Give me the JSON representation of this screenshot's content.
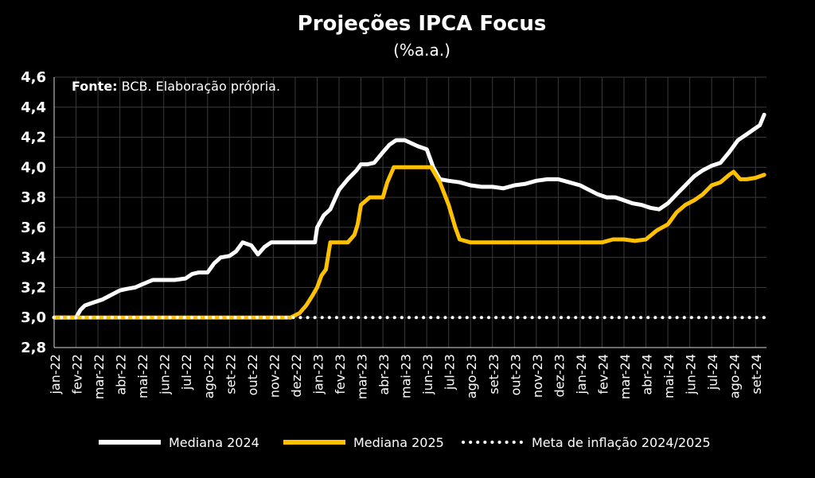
{
  "chart_data": {
    "type": "line",
    "title": "Projeções IPCA Focus",
    "subtitle": "(%a.a.)",
    "source_label": "Fonte:",
    "source_text": " BCB. Elaboração própria.",
    "ylim": [
      2.8,
      4.6
    ],
    "yticks": [
      "2,8",
      "3,0",
      "3,2",
      "3,4",
      "3,6",
      "3,8",
      "4,0",
      "4,2",
      "4,4",
      "4,6"
    ],
    "ytick_values": [
      2.8,
      3.0,
      3.2,
      3.4,
      3.6,
      3.8,
      4.0,
      4.2,
      4.4,
      4.6
    ],
    "categories": [
      "jan-22",
      "fev-22",
      "mar-22",
      "abr-22",
      "mai-22",
      "jun-22",
      "jul-22",
      "ago-22",
      "set-22",
      "out-22",
      "nov-22",
      "dez-22",
      "jan-23",
      "fev-23",
      "mar-23",
      "abr-23",
      "mai-23",
      "jun-23",
      "jul-23",
      "ago-23",
      "set-23",
      "out-23",
      "nov-23",
      "dez-23",
      "jan-24",
      "fev-24",
      "mar-24",
      "abr-24",
      "mai-24",
      "jun-24",
      "jul-24",
      "ago-24",
      "set-24"
    ],
    "xlim": [
      0,
      32.5
    ],
    "grid": true,
    "legend_position": "bottom",
    "series": [
      {
        "name": "Mediana 2024",
        "color": "#ffffff",
        "style": "solid",
        "x": [
          0,
          1.0,
          1.2,
          1.4,
          1.8,
          2.2,
          2.6,
          3.0,
          3.3,
          3.7,
          4.0,
          4.5,
          5.0,
          5.5,
          6.0,
          6.3,
          6.6,
          7.0,
          7.3,
          7.6,
          8.0,
          8.3,
          8.6,
          9.0,
          9.3,
          9.6,
          9.9,
          10.2,
          10.6,
          11.0,
          11.5,
          11.9,
          12.0,
          12.3,
          12.6,
          13.0,
          13.4,
          13.8,
          14.0,
          14.3,
          14.6,
          15.0,
          15.3,
          15.6,
          16.0,
          16.3,
          16.6,
          17.0,
          17.3,
          17.6,
          18.0,
          18.5,
          19.0,
          19.5,
          20.0,
          20.5,
          21.0,
          21.5,
          22.0,
          22.5,
          23.0,
          23.5,
          24.0,
          24.4,
          24.8,
          25.2,
          25.6,
          26.0,
          26.4,
          26.8,
          27.2,
          27.6,
          28.0,
          28.4,
          28.8,
          29.2,
          29.6,
          30.0,
          30.4,
          30.8,
          31.2,
          31.6,
          32.0,
          32.2,
          32.4
        ],
        "y": [
          3.0,
          3.0,
          3.05,
          3.08,
          3.1,
          3.12,
          3.15,
          3.18,
          3.19,
          3.2,
          3.22,
          3.25,
          3.25,
          3.25,
          3.26,
          3.29,
          3.3,
          3.3,
          3.36,
          3.4,
          3.41,
          3.44,
          3.5,
          3.48,
          3.42,
          3.47,
          3.5,
          3.5,
          3.5,
          3.5,
          3.5,
          3.5,
          3.6,
          3.68,
          3.72,
          3.85,
          3.92,
          3.98,
          4.02,
          4.02,
          4.03,
          4.1,
          4.15,
          4.18,
          4.18,
          4.16,
          4.14,
          4.12,
          4.0,
          3.92,
          3.91,
          3.9,
          3.88,
          3.87,
          3.87,
          3.86,
          3.88,
          3.89,
          3.91,
          3.92,
          3.92,
          3.9,
          3.88,
          3.85,
          3.82,
          3.8,
          3.8,
          3.78,
          3.76,
          3.75,
          3.73,
          3.72,
          3.76,
          3.82,
          3.88,
          3.94,
          3.98,
          4.01,
          4.03,
          4.1,
          4.18,
          4.22,
          4.26,
          4.28,
          4.35
        ]
      },
      {
        "name": "Mediana 2025",
        "color": "#ffc000",
        "style": "solid",
        "x": [
          0,
          10.8,
          11.2,
          11.5,
          11.8,
          12.0,
          12.2,
          12.4,
          12.6,
          13.0,
          13.4,
          13.7,
          13.85,
          14.0,
          14.4,
          14.8,
          15.0,
          15.2,
          15.5,
          16.0,
          16.5,
          17.0,
          17.2,
          17.6,
          18.0,
          18.3,
          18.5,
          19.0,
          20.0,
          21.0,
          22.0,
          23.0,
          24.0,
          25.0,
          25.5,
          26.0,
          26.5,
          27.0,
          27.5,
          28.0,
          28.4,
          28.8,
          29.2,
          29.6,
          30.0,
          30.4,
          30.8,
          31.0,
          31.3,
          31.6,
          32.0,
          32.4
        ],
        "y": [
          3.0,
          3.0,
          3.03,
          3.08,
          3.15,
          3.2,
          3.28,
          3.32,
          3.5,
          3.5,
          3.5,
          3.55,
          3.62,
          3.75,
          3.8,
          3.8,
          3.8,
          3.9,
          4.0,
          4.0,
          4.0,
          4.0,
          4.0,
          3.9,
          3.75,
          3.6,
          3.52,
          3.5,
          3.5,
          3.5,
          3.5,
          3.5,
          3.5,
          3.5,
          3.52,
          3.52,
          3.51,
          3.52,
          3.58,
          3.62,
          3.7,
          3.75,
          3.78,
          3.82,
          3.88,
          3.9,
          3.95,
          3.97,
          3.92,
          3.92,
          3.93,
          3.95
        ]
      },
      {
        "name": "Meta de inflação 2024/2025",
        "color": "#ffffff",
        "style": "dotted",
        "x": [
          0,
          32.5
        ],
        "y": [
          3.0,
          3.0
        ]
      }
    ]
  }
}
